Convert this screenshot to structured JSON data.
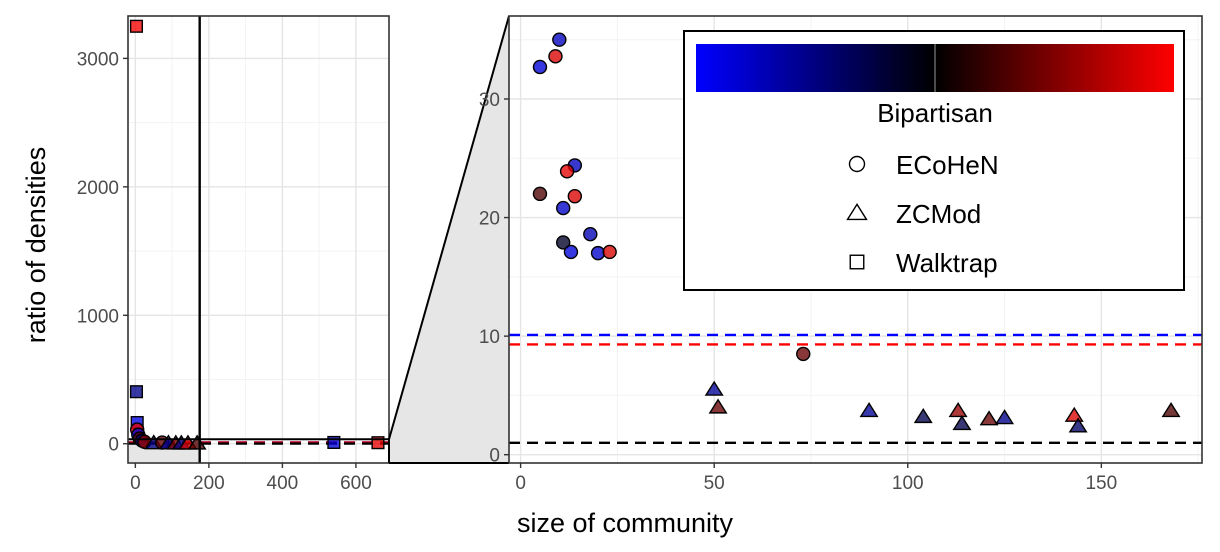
{
  "chart_data": [
    {
      "type": "scatter",
      "panel": "overview",
      "title": "",
      "xlabel": "size of community",
      "ylabel": "ratio of densities",
      "xlim": [
        -20,
        690
      ],
      "ylim": [
        -150,
        3330
      ],
      "xticks": [
        0,
        200,
        400,
        600
      ],
      "yticks": [
        0,
        1000,
        2000,
        3000
      ],
      "grid": true,
      "zoom_region": {
        "x": [
          0,
          175
        ],
        "y": [
          0,
          35
        ]
      },
      "color_scale": {
        "low": "#0000ff",
        "mid": "#000000",
        "high": "#ff0000",
        "range": [
          -1,
          1
        ]
      },
      "reference_lines": [
        {
          "y": 10.1,
          "color": "#0000ff",
          "dash": true
        },
        {
          "y": 9.3,
          "color": "#ff0000",
          "dash": true
        },
        {
          "y": 1.0,
          "color": "#000000",
          "dash": true
        }
      ],
      "points": [
        {
          "x": 3,
          "y": 3250,
          "shape": "square",
          "bipartisan": 0.95
        },
        {
          "x": 3,
          "y": 405,
          "shape": "square",
          "bipartisan": -0.55
        },
        {
          "x": 5,
          "y": 165,
          "shape": "square",
          "bipartisan": -0.9
        },
        {
          "x": 5,
          "y": 110,
          "shape": "circle",
          "bipartisan": 0.9
        },
        {
          "x": 8,
          "y": 70,
          "shape": "circle",
          "bipartisan": -0.8
        },
        {
          "x": 12,
          "y": 40,
          "shape": "circle",
          "bipartisan": 0.4
        },
        {
          "x": 18,
          "y": 25,
          "shape": "circle",
          "bipartisan": -0.6
        },
        {
          "x": 25,
          "y": 15,
          "shape": "circle",
          "bipartisan": 0.6
        },
        {
          "x": 50,
          "y": 5,
          "shape": "triangle",
          "bipartisan": -0.5
        },
        {
          "x": 73,
          "y": 9,
          "shape": "circle",
          "bipartisan": 0.4
        },
        {
          "x": 90,
          "y": 4,
          "shape": "triangle",
          "bipartisan": -0.6
        },
        {
          "x": 110,
          "y": 3,
          "shape": "triangle",
          "bipartisan": 0.5
        },
        {
          "x": 125,
          "y": 3,
          "shape": "triangle",
          "bipartisan": -0.5
        },
        {
          "x": 143,
          "y": 3,
          "shape": "triangle",
          "bipartisan": 0.85
        },
        {
          "x": 168,
          "y": 3,
          "shape": "triangle",
          "bipartisan": 0.3
        },
        {
          "x": 540,
          "y": 10,
          "shape": "square",
          "bipartisan": -0.85
        },
        {
          "x": 660,
          "y": 8,
          "shape": "square",
          "bipartisan": 0.9
        }
      ]
    },
    {
      "type": "scatter",
      "panel": "zoom",
      "title": "",
      "xlabel": "size of community",
      "ylabel": "",
      "xlim": [
        -3,
        176
      ],
      "ylim": [
        -0.7,
        37
      ],
      "xticks": [
        0,
        50,
        100,
        150
      ],
      "yticks": [
        0,
        10,
        20,
        30
      ],
      "grid": true,
      "color_scale": {
        "low": "#0000ff",
        "mid": "#000000",
        "high": "#ff0000",
        "range": [
          -1,
          1
        ]
      },
      "reference_lines": [
        {
          "y": 10.1,
          "color": "#0000ff",
          "dash": true
        },
        {
          "y": 9.3,
          "color": "#ff0000",
          "dash": true
        },
        {
          "y": 1.0,
          "color": "#000000",
          "dash": true
        }
      ],
      "legend": {
        "placement": "top-right",
        "colorbar_title": "Bipartisan",
        "shapes": [
          {
            "shape": "circle",
            "label": "ECoHeN"
          },
          {
            "shape": "triangle",
            "label": "ZCMod"
          },
          {
            "shape": "square",
            "label": "Walktrap"
          }
        ]
      },
      "points": [
        {
          "x": 5,
          "y": 32.7,
          "shape": "circle",
          "bipartisan": -0.85
        },
        {
          "x": 10,
          "y": 35.0,
          "shape": "circle",
          "bipartisan": -0.75
        },
        {
          "x": 9,
          "y": 33.6,
          "shape": "circle",
          "bipartisan": 0.85
        },
        {
          "x": 14,
          "y": 24.4,
          "shape": "circle",
          "bipartisan": -0.75
        },
        {
          "x": 12,
          "y": 23.9,
          "shape": "circle",
          "bipartisan": 0.9
        },
        {
          "x": 5,
          "y": 22.0,
          "shape": "circle",
          "bipartisan": 0.3
        },
        {
          "x": 14,
          "y": 21.8,
          "shape": "circle",
          "bipartisan": 0.85
        },
        {
          "x": 11,
          "y": 20.8,
          "shape": "circle",
          "bipartisan": -0.8
        },
        {
          "x": 11,
          "y": 17.9,
          "shape": "circle",
          "bipartisan": -0.15
        },
        {
          "x": 18,
          "y": 18.6,
          "shape": "circle",
          "bipartisan": -0.7
        },
        {
          "x": 13,
          "y": 17.1,
          "shape": "circle",
          "bipartisan": -0.85
        },
        {
          "x": 20,
          "y": 17.0,
          "shape": "circle",
          "bipartisan": -0.8
        },
        {
          "x": 23,
          "y": 17.1,
          "shape": "circle",
          "bipartisan": 0.85
        },
        {
          "x": 73,
          "y": 8.5,
          "shape": "circle",
          "bipartisan": 0.4
        },
        {
          "x": 50,
          "y": 5.5,
          "shape": "triangle",
          "bipartisan": -0.6
        },
        {
          "x": 51,
          "y": 4.0,
          "shape": "triangle",
          "bipartisan": 0.4
        },
        {
          "x": 90,
          "y": 3.7,
          "shape": "triangle",
          "bipartisan": -0.6
        },
        {
          "x": 104,
          "y": 3.2,
          "shape": "triangle",
          "bipartisan": -0.3
        },
        {
          "x": 113,
          "y": 3.7,
          "shape": "triangle",
          "bipartisan": 0.6
        },
        {
          "x": 114,
          "y": 2.6,
          "shape": "triangle",
          "bipartisan": -0.3
        },
        {
          "x": 121,
          "y": 3.0,
          "shape": "triangle",
          "bipartisan": 0.4
        },
        {
          "x": 125,
          "y": 3.1,
          "shape": "triangle",
          "bipartisan": -0.55
        },
        {
          "x": 143,
          "y": 3.3,
          "shape": "triangle",
          "bipartisan": 0.85
        },
        {
          "x": 144,
          "y": 2.4,
          "shape": "triangle",
          "bipartisan": -0.4
        },
        {
          "x": 168,
          "y": 3.7,
          "shape": "triangle",
          "bipartisan": 0.3
        }
      ]
    }
  ]
}
